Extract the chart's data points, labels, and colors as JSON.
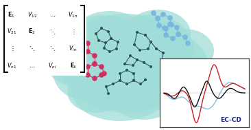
{
  "background_color": "#ffffff",
  "blob_color": "#a0ddd8",
  "blob_alpha": 0.75,
  "molecule_dark_color": "#2a5050",
  "molecule_pink_color": "#d03060",
  "molecule_blue_color": "#7ab8e0",
  "plot_bg": "#ffffff",
  "plot_border": "#444444",
  "blue_line_color": "#7ab8e0",
  "red_line_color": "#cc2020",
  "black_line_color": "#111111",
  "eccd_label": "EC-CD",
  "eccd_label_color": "#1a237e",
  "eccd_label_fontsize": 6.5,
  "matrix_rows": [
    [
      "$\\mathbf{E}_1$",
      "$V_{12}$",
      "$\\cdots$",
      "$V_{1n}$"
    ],
    [
      "$V_{21}$",
      "$\\mathbf{E}_2$",
      "$\\ddots$",
      "$\\vdots$"
    ],
    [
      "$\\vdots$",
      "$\\ddots$",
      "$\\ddots$",
      "$V_{in}$"
    ],
    [
      "$V_{n1}$",
      "$\\cdots$",
      "$V_{ni}$",
      "$\\mathbf{E_i}$"
    ]
  ]
}
